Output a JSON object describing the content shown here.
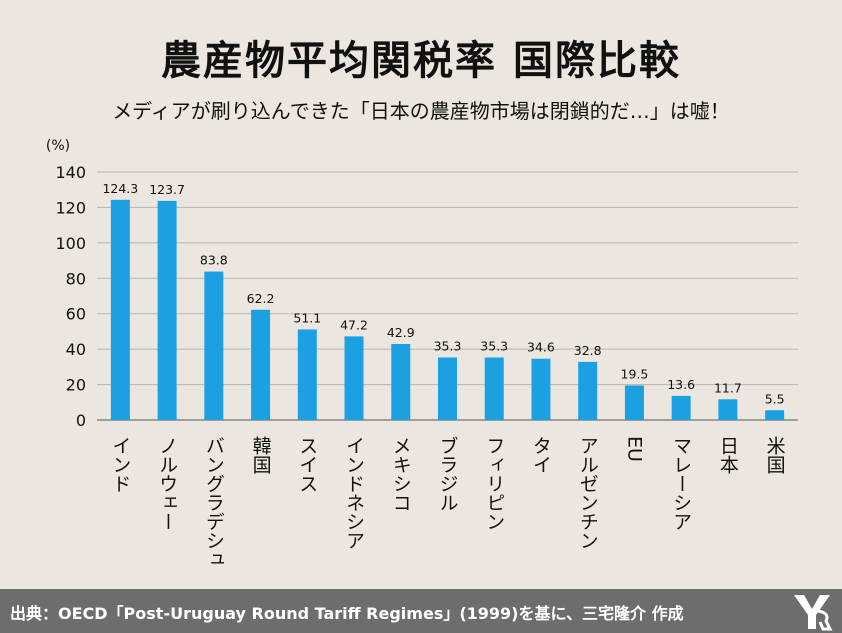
{
  "header": {
    "title": "農産物平均関税率 国際比較",
    "subtitle": "メディアが刷り込んできた「日本の農産物市場は閉鎖的だ…」は嘘！"
  },
  "footer": {
    "source": "出典：OECD「Post-Uruguay Round Tariff Regimes」(1999)を基に、三宅隆介 作成"
  },
  "chart_data": {
    "type": "bar",
    "title": "農産物平均関税率 国際比較",
    "ylabel": "(%)",
    "ylim": [
      0,
      140
    ],
    "yticks": [
      0,
      20,
      40,
      60,
      80,
      100,
      120,
      140
    ],
    "grid": true,
    "categories": [
      "インド",
      "ノルウェー",
      "バングラデシュ",
      "韓国",
      "スイス",
      "インドネシア",
      "メキシコ",
      "ブラジル",
      "フィリピン",
      "タイ",
      "アルゼンチン",
      "EU",
      "マレーシア",
      "日本",
      "米国"
    ],
    "values": [
      124.3,
      123.7,
      83.8,
      62.2,
      51.1,
      47.2,
      42.9,
      35.3,
      35.3,
      34.6,
      32.8,
      19.5,
      13.6,
      11.7,
      5.5
    ],
    "value_labels": [
      "124.3",
      "123.7",
      "83.8",
      "62.2",
      "51.1",
      "47.2",
      "42.9",
      "35.3",
      "35.3",
      "34.6",
      "32.8",
      "19.5",
      "13.6",
      "11.7",
      "5.5"
    ],
    "bar_color": "#1ba1e2"
  }
}
